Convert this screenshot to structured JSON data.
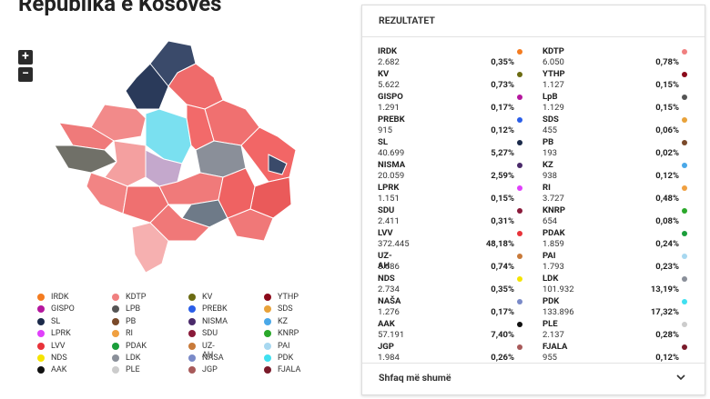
{
  "header": {
    "title": "Republika e Kosovës"
  },
  "zoom": {
    "in": "+",
    "out": "−"
  },
  "legend": {
    "columns": [
      [
        {
          "name": "IRDK",
          "color": "#f47c20"
        },
        {
          "name": "GISPO",
          "color": "#b5179e"
        },
        {
          "name": "SL",
          "color": "#1b2a4a"
        },
        {
          "name": "LPRK",
          "color": "#e040fb"
        },
        {
          "name": "LVV",
          "color": "#e8333a"
        },
        {
          "name": "NDS",
          "color": "#f5e400"
        },
        {
          "name": "AAK",
          "color": "#111111"
        }
      ],
      [
        {
          "name": "KDTP",
          "color": "#f08080"
        },
        {
          "name": "LPB",
          "color": "#555555"
        },
        {
          "name": "PB",
          "color": "#7a4a2a"
        },
        {
          "name": "RI",
          "color": "#f0a040"
        },
        {
          "name": "PDAK",
          "color": "#1a9e3a"
        },
        {
          "name": "LDK",
          "color": "#8a8f99"
        },
        {
          "name": "PLE",
          "color": "#cccccc"
        }
      ],
      [
        {
          "name": "KV",
          "color": "#6b6b12"
        },
        {
          "name": "PREBK",
          "color": "#2a5ee8"
        },
        {
          "name": "NISMA",
          "color": "#4a2a6a"
        },
        {
          "name": "SDU",
          "color": "#8a1a3a"
        },
        {
          "name": "UZ-AH",
          "color": "#c87a3a"
        },
        {
          "name": "NASA",
          "color": "#7a8ac8"
        },
        {
          "name": "JGP",
          "color": "#a85a5a"
        }
      ],
      [
        {
          "name": "YTHP",
          "color": "#8b0a1a"
        },
        {
          "name": "SDS",
          "color": "#e8a23a"
        },
        {
          "name": "KZ",
          "color": "#4aa8e8"
        },
        {
          "name": "KNRP",
          "color": "#2aa82a"
        },
        {
          "name": "PAI",
          "color": "#a8d8f0"
        },
        {
          "name": "PDK",
          "color": "#40e0f0"
        },
        {
          "name": "FJALA",
          "color": "#7a1a2a"
        }
      ]
    ]
  },
  "results": {
    "title": "REZULTATET",
    "more": "Shfaq më shumë",
    "columns": [
      [
        {
          "name": "IRDK",
          "votes": "2.682",
          "percent": "0,35%",
          "color": "#f47c20"
        },
        {
          "name": "KV",
          "votes": "5.622",
          "percent": "0,73%",
          "color": "#6b6b12"
        },
        {
          "name": "GISPO",
          "votes": "1.291",
          "percent": "0,17%",
          "color": "#b5179e"
        },
        {
          "name": "PREBK",
          "votes": "915",
          "percent": "0,12%",
          "color": "#2a5ee8"
        },
        {
          "name": "SL",
          "votes": "40.699",
          "percent": "5,27%",
          "color": "#1b2a4a"
        },
        {
          "name": "NISMA",
          "votes": "20.059",
          "percent": "2,59%",
          "color": "#4a2a6a"
        },
        {
          "name": "LPRK",
          "votes": "1.151",
          "percent": "0,15%",
          "color": "#e040fb"
        },
        {
          "name": "SDU",
          "votes": "2.411",
          "percent": "0,31%",
          "color": "#8a1a3a"
        },
        {
          "name": "LVV",
          "votes": "372.445",
          "percent": "48,18%",
          "color": "#e8333a"
        },
        {
          "name": "UZ-AH",
          "votes": "5.686",
          "percent": "0,74%",
          "color": "#c87a3a"
        },
        {
          "name": "NDS",
          "votes": "2.734",
          "percent": "0,35%",
          "color": "#f5e400"
        },
        {
          "name": "NAŠA",
          "votes": "1.276",
          "percent": "0,17%",
          "color": "#7a8ac8"
        },
        {
          "name": "AAK",
          "votes": "57.191",
          "percent": "7,40%",
          "color": "#111111"
        },
        {
          "name": "JGP",
          "votes": "1.984",
          "percent": "0,26%",
          "color": "#a85a5a"
        }
      ],
      [
        {
          "name": "KDTP",
          "votes": "6.050",
          "percent": "0,78%",
          "color": "#f08080"
        },
        {
          "name": "YTHP",
          "votes": "1.127",
          "percent": "0,15%",
          "color": "#8b0a1a"
        },
        {
          "name": "LpB",
          "votes": "1.129",
          "percent": "0,15%",
          "color": "#555555"
        },
        {
          "name": "SDS",
          "votes": "455",
          "percent": "0,06%",
          "color": "#e8a23a"
        },
        {
          "name": "PB",
          "votes": "193",
          "percent": "0,02%",
          "color": "#7a4a2a"
        },
        {
          "name": "KZ",
          "votes": "938",
          "percent": "0,12%",
          "color": "#4aa8e8"
        },
        {
          "name": "RI",
          "votes": "3.727",
          "percent": "0,48%",
          "color": "#f0a040"
        },
        {
          "name": "KNRP",
          "votes": "654",
          "percent": "0,08%",
          "color": "#2aa82a"
        },
        {
          "name": "PDAK",
          "votes": "1.859",
          "percent": "0,24%",
          "color": "#1a9e3a"
        },
        {
          "name": "PAI",
          "votes": "1.793",
          "percent": "0,23%",
          "color": "#a8d8f0"
        },
        {
          "name": "LDK",
          "votes": "101.932",
          "percent": "13,19%",
          "color": "#8a8f99"
        },
        {
          "name": "PDK",
          "votes": "133.896",
          "percent": "17,32%",
          "color": "#40e0f0"
        },
        {
          "name": "PLE",
          "votes": "2.137",
          "percent": "0,28%",
          "color": "#cccccc"
        },
        {
          "name": "FJALA",
          "votes": "955",
          "percent": "0,12%",
          "color": "#7a1a2a"
        }
      ]
    ]
  }
}
